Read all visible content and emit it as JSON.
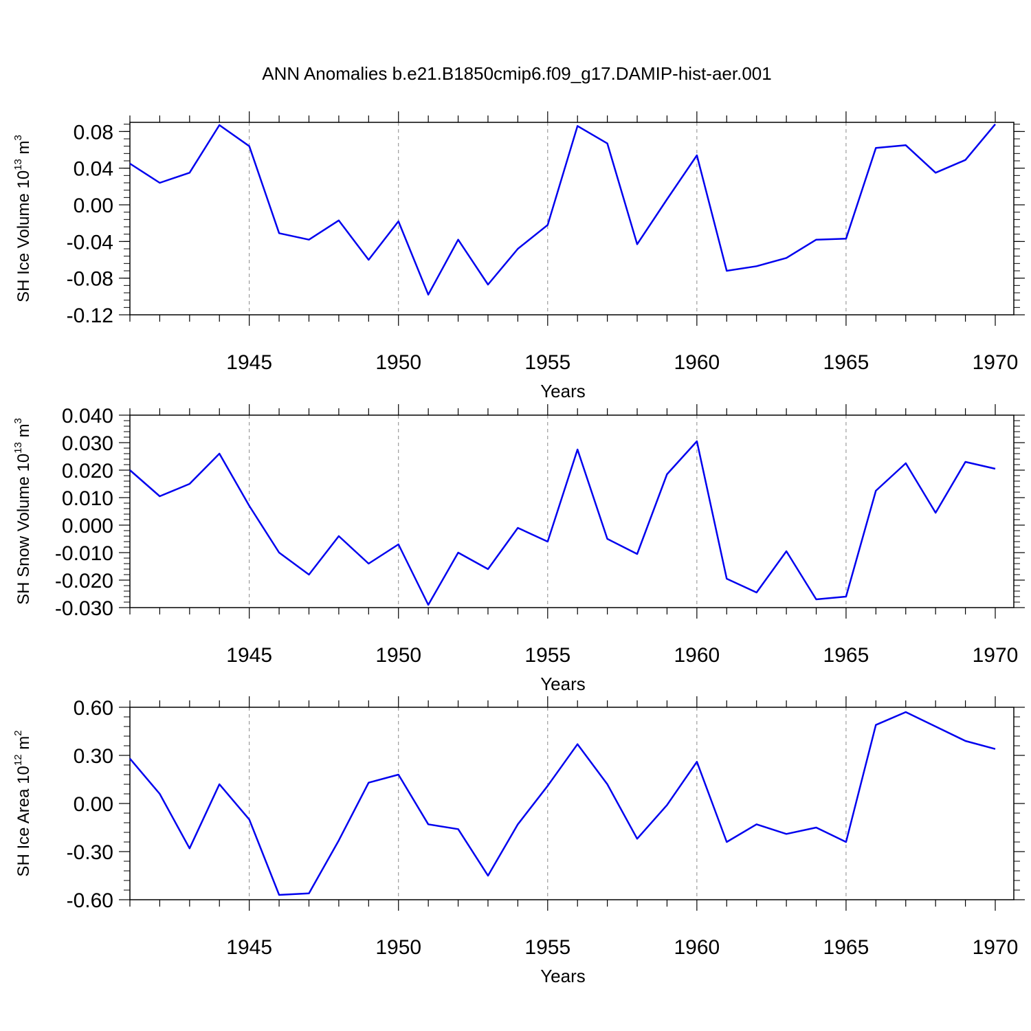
{
  "title": "ANN Anomalies b.e21.B1850cmip6.f09_g17.DAMIP-hist-aer.001",
  "line_color": "#0000ee",
  "chart_data": [
    {
      "type": "line",
      "ylabel_main": "SH Ice Volume 10",
      "ylabel_exp": "13",
      "ylabel_unit": " m",
      "ylabel_unit_exp": "3",
      "xlabel": "Years",
      "xlim": [
        1941,
        1970
      ],
      "ylim": [
        -0.12,
        0.09
      ],
      "yticks": [
        -0.12,
        -0.08,
        -0.04,
        0.0,
        0.04,
        0.08
      ],
      "ytick_labels": [
        "-0.12",
        "-0.08",
        "-0.04",
        "0.00",
        "0.04",
        "0.08"
      ],
      "xticks": [
        1945,
        1950,
        1955,
        1960,
        1965,
        1970
      ],
      "xtick_labels": [
        "1945",
        "1950",
        "1955",
        "1960",
        "1965",
        "1970"
      ],
      "x": [
        1941,
        1942,
        1943,
        1944,
        1945,
        1946,
        1947,
        1948,
        1949,
        1950,
        1951,
        1952,
        1953,
        1954,
        1955,
        1956,
        1957,
        1958,
        1959,
        1960,
        1961,
        1962,
        1963,
        1964,
        1965,
        1966,
        1967,
        1968,
        1969,
        1970
      ],
      "y": [
        0.045,
        0.024,
        0.035,
        0.087,
        0.064,
        -0.031,
        -0.038,
        -0.017,
        -0.06,
        -0.018,
        -0.098,
        -0.038,
        -0.087,
        -0.048,
        -0.022,
        0.086,
        0.067,
        -0.043,
        0.006,
        0.054,
        -0.072,
        -0.067,
        -0.058,
        -0.038,
        -0.037,
        0.062,
        0.065,
        0.035,
        0.049,
        0.088
      ],
      "grid": "dashed vertical at major x ticks"
    },
    {
      "type": "line",
      "ylabel_main": "SH Snow Volume 10",
      "ylabel_exp": "13",
      "ylabel_unit": " m",
      "ylabel_unit_exp": "3",
      "xlabel": "Years",
      "xlim": [
        1941,
        1970
      ],
      "ylim": [
        -0.03,
        0.04
      ],
      "yticks": [
        -0.03,
        -0.02,
        -0.01,
        0.0,
        0.01,
        0.02,
        0.03,
        0.04
      ],
      "ytick_labels": [
        "-0.030",
        "-0.020",
        "-0.010",
        "0.000",
        "0.010",
        "0.020",
        "0.030",
        "0.040"
      ],
      "xticks": [
        1945,
        1950,
        1955,
        1960,
        1965,
        1970
      ],
      "xtick_labels": [
        "1945",
        "1950",
        "1955",
        "1960",
        "1965",
        "1970"
      ],
      "x": [
        1941,
        1942,
        1943,
        1944,
        1945,
        1946,
        1947,
        1948,
        1949,
        1950,
        1951,
        1952,
        1953,
        1954,
        1955,
        1956,
        1957,
        1958,
        1959,
        1960,
        1961,
        1962,
        1963,
        1964,
        1965,
        1966,
        1967,
        1968,
        1969,
        1970
      ],
      "y": [
        0.02,
        0.0105,
        0.015,
        0.026,
        0.007,
        -0.01,
        -0.018,
        -0.004,
        -0.014,
        -0.007,
        -0.029,
        -0.01,
        -0.016,
        -0.001,
        -0.006,
        0.0275,
        -0.005,
        -0.0105,
        0.0185,
        0.0305,
        -0.0195,
        -0.0245,
        -0.0095,
        -0.027,
        -0.026,
        0.0125,
        0.0225,
        0.0045,
        0.023,
        0.0205
      ],
      "grid": "dashed vertical at major x ticks"
    },
    {
      "type": "line",
      "ylabel_main": "SH Ice Area 10",
      "ylabel_exp": "12",
      "ylabel_unit": " m",
      "ylabel_unit_exp": "2",
      "xlabel": "Years",
      "xlim": [
        1941,
        1970
      ],
      "ylim": [
        -0.6,
        0.6
      ],
      "yticks": [
        -0.6,
        -0.3,
        0.0,
        0.3,
        0.6
      ],
      "ytick_labels": [
        "-0.60",
        "-0.30",
        "0.00",
        "0.30",
        "0.60"
      ],
      "xticks": [
        1945,
        1950,
        1955,
        1960,
        1965,
        1970
      ],
      "xtick_labels": [
        "1945",
        "1950",
        "1955",
        "1960",
        "1965",
        "1970"
      ],
      "x": [
        1941,
        1942,
        1943,
        1944,
        1945,
        1946,
        1947,
        1948,
        1949,
        1950,
        1951,
        1952,
        1953,
        1954,
        1955,
        1956,
        1957,
        1958,
        1959,
        1960,
        1961,
        1962,
        1963,
        1964,
        1965,
        1966,
        1967,
        1968,
        1969,
        1970
      ],
      "y": [
        0.28,
        0.06,
        -0.28,
        0.12,
        -0.1,
        -0.57,
        -0.56,
        -0.23,
        0.13,
        0.18,
        -0.13,
        -0.16,
        -0.45,
        -0.13,
        0.11,
        0.37,
        0.12,
        -0.22,
        -0.01,
        0.26,
        -0.24,
        -0.13,
        -0.19,
        -0.15,
        -0.24,
        0.49,
        0.57,
        0.48,
        0.39,
        0.34
      ],
      "grid": "dashed vertical at major x ticks"
    }
  ]
}
